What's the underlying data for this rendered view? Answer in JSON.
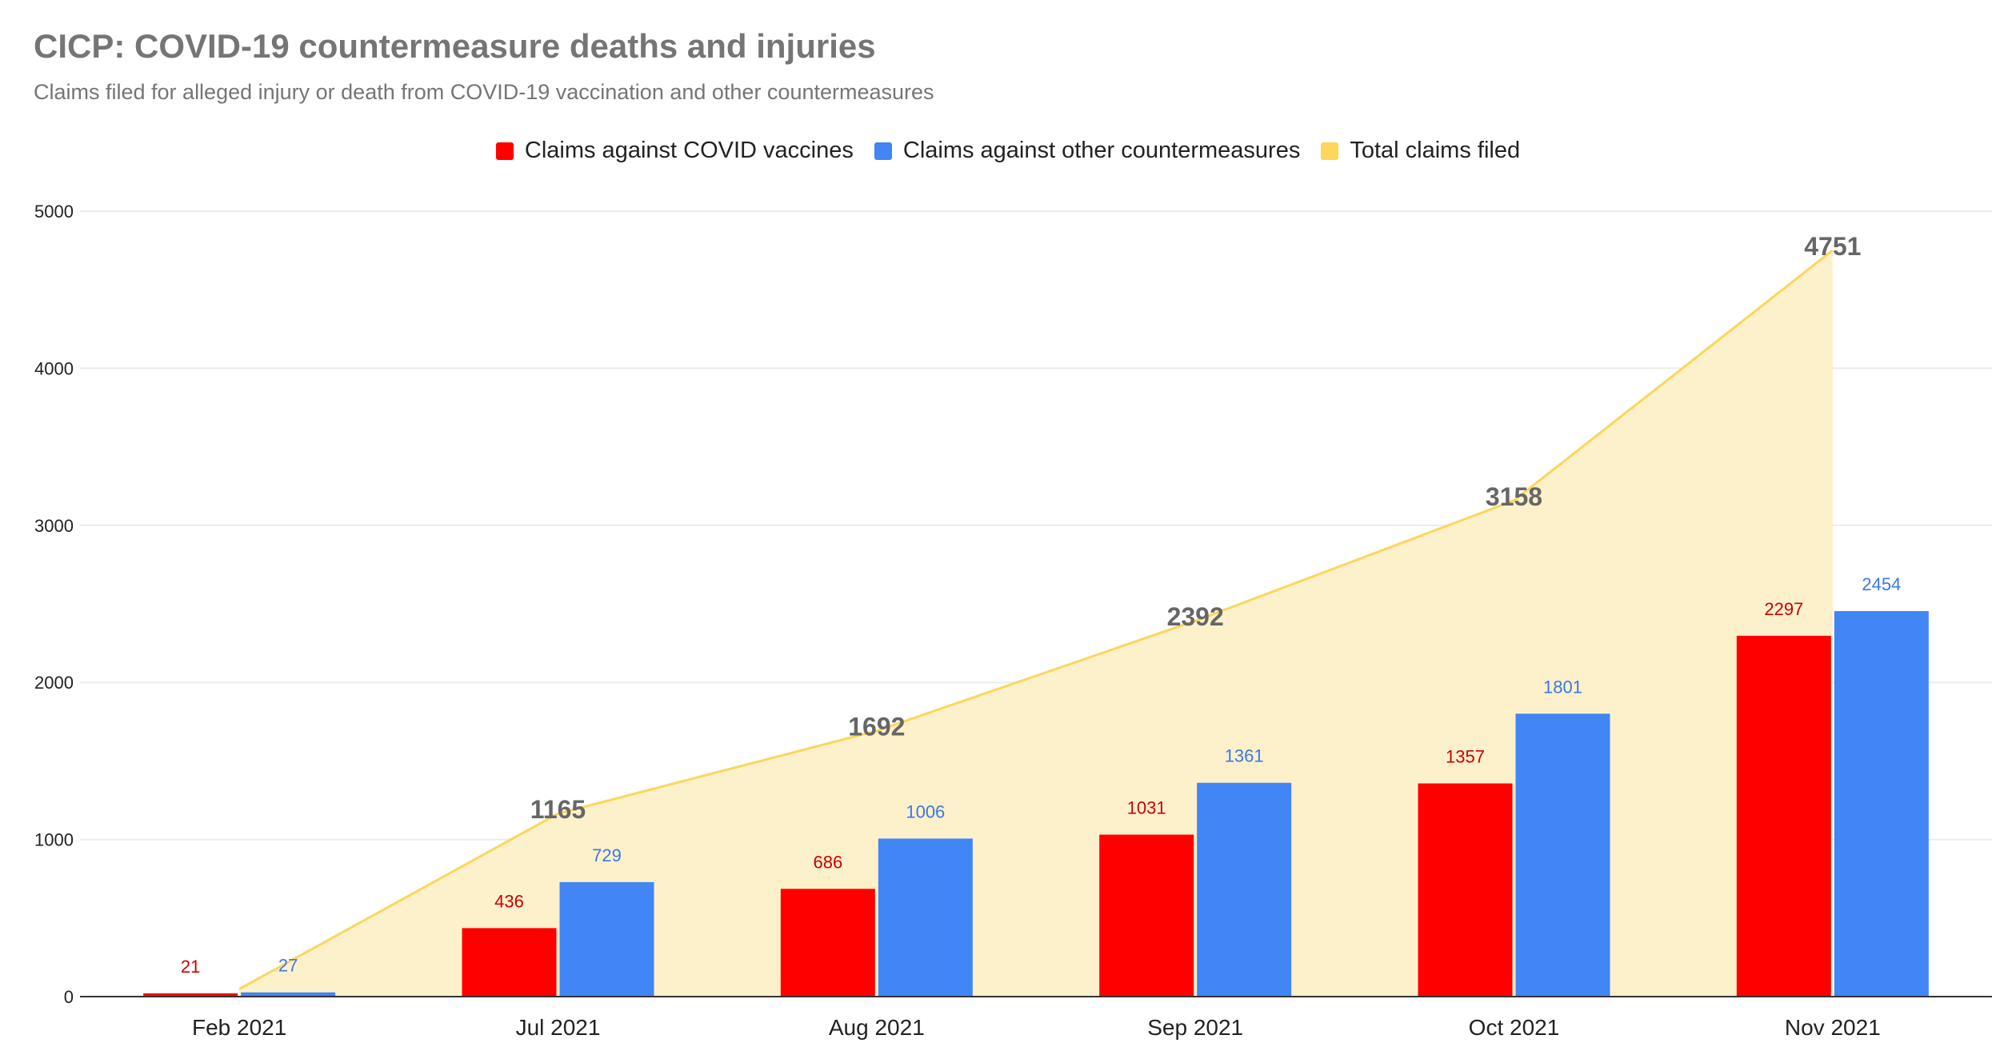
{
  "title": "CICP: COVID-19 countermeasure deaths and injuries",
  "subtitle": "Claims filed for alleged injury or death from COVID-19 vaccination and other countermeasures",
  "colors": {
    "vaccines": "#ff0000",
    "other": "#4285f4",
    "total_line": "#fbd75b",
    "total_fill": "#fdf1cc",
    "vaccines_label": "#cc0000",
    "other_label": "#3b78e7",
    "total_label": "#666666",
    "grid": "#ebebeb",
    "axis": "#333333"
  },
  "chart_data": {
    "type": "bar",
    "categories": [
      "Feb 2021",
      "Jul 2021",
      "Aug 2021",
      "Sep 2021",
      "Oct 2021",
      "Nov 2021"
    ],
    "series": [
      {
        "name": "Claims against COVID vaccines",
        "type": "bar",
        "values": [
          21,
          436,
          686,
          1031,
          1357,
          2297
        ]
      },
      {
        "name": "Claims against other countermeasures",
        "type": "bar",
        "values": [
          27,
          729,
          1006,
          1361,
          1801,
          2454
        ]
      },
      {
        "name": "Total claims filed",
        "type": "area",
        "values": [
          48,
          1165,
          1692,
          2392,
          3158,
          4751
        ]
      }
    ],
    "y_ticks": [
      "0",
      "1000",
      "2000",
      "3000",
      "4000",
      "5000"
    ],
    "ylim": [
      0,
      5000
    ],
    "grid": true,
    "legend_position": "top-center",
    "data_labels": true
  }
}
